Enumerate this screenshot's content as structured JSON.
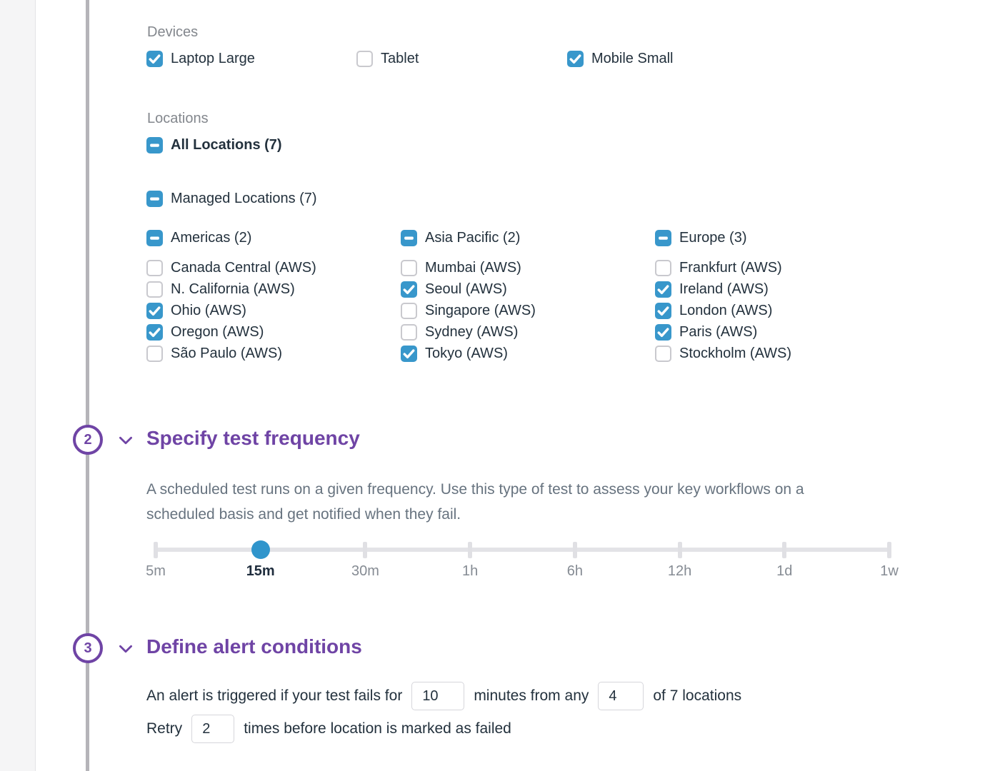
{
  "devices": {
    "label": "Devices",
    "items": [
      {
        "label": "Laptop Large",
        "state": "checked"
      },
      {
        "label": "Tablet",
        "state": "unchecked"
      },
      {
        "label": "Mobile Small",
        "state": "checked"
      }
    ]
  },
  "locations": {
    "label": "Locations",
    "all": {
      "label": "All Locations (7)",
      "state": "indeterminate"
    },
    "managed": {
      "label": "Managed Locations (7)",
      "state": "indeterminate"
    },
    "groups": [
      {
        "header": {
          "label": "Americas (2)",
          "state": "indeterminate"
        },
        "items": [
          {
            "label": "Canada Central (AWS)",
            "state": "unchecked"
          },
          {
            "label": "N. California (AWS)",
            "state": "unchecked"
          },
          {
            "label": "Ohio (AWS)",
            "state": "checked"
          },
          {
            "label": "Oregon (AWS)",
            "state": "checked"
          },
          {
            "label": "São Paulo (AWS)",
            "state": "unchecked"
          }
        ]
      },
      {
        "header": {
          "label": "Asia Pacific (2)",
          "state": "indeterminate"
        },
        "items": [
          {
            "label": "Mumbai (AWS)",
            "state": "unchecked"
          },
          {
            "label": "Seoul (AWS)",
            "state": "checked"
          },
          {
            "label": "Singapore (AWS)",
            "state": "unchecked"
          },
          {
            "label": "Sydney (AWS)",
            "state": "unchecked"
          },
          {
            "label": "Tokyo (AWS)",
            "state": "checked"
          }
        ]
      },
      {
        "header": {
          "label": "Europe (3)",
          "state": "indeterminate"
        },
        "items": [
          {
            "label": "Frankfurt (AWS)",
            "state": "unchecked"
          },
          {
            "label": "Ireland (AWS)",
            "state": "checked"
          },
          {
            "label": "London (AWS)",
            "state": "checked"
          },
          {
            "label": "Paris (AWS)",
            "state": "checked"
          },
          {
            "label": "Stockholm (AWS)",
            "state": "unchecked"
          }
        ]
      }
    ]
  },
  "frequency_section": {
    "number": "2",
    "title": "Specify test frequency",
    "description": "A scheduled test runs on a given frequency. Use this type of test to assess your key workflows on a scheduled basis and get notified when they fail."
  },
  "slider": {
    "stops": [
      "5m",
      "15m",
      "30m",
      "1h",
      "6h",
      "12h",
      "1d",
      "1w"
    ],
    "selected_index": 1,
    "selected_value": "15m"
  },
  "alerts_section": {
    "number": "3",
    "title": "Define alert conditions"
  },
  "alert_conditions": {
    "line1": {
      "text_before": "An alert is triggered if your test fails for",
      "minutes_value": "10",
      "text_middle": "minutes from any",
      "locations_value": "4",
      "text_after": "of 7 locations"
    },
    "line2": {
      "text_retry": "Retry",
      "retry_value": "2",
      "text_after": "times before location is marked as failed"
    }
  },
  "colors": {
    "accent_blue": "#3897cb",
    "accent_purple": "#6f44a5",
    "text_dark": "#23313d",
    "text_gray": "#83878d",
    "track_gray": "#e3e3e7",
    "stepper_gray": "#b5b4b9"
  }
}
